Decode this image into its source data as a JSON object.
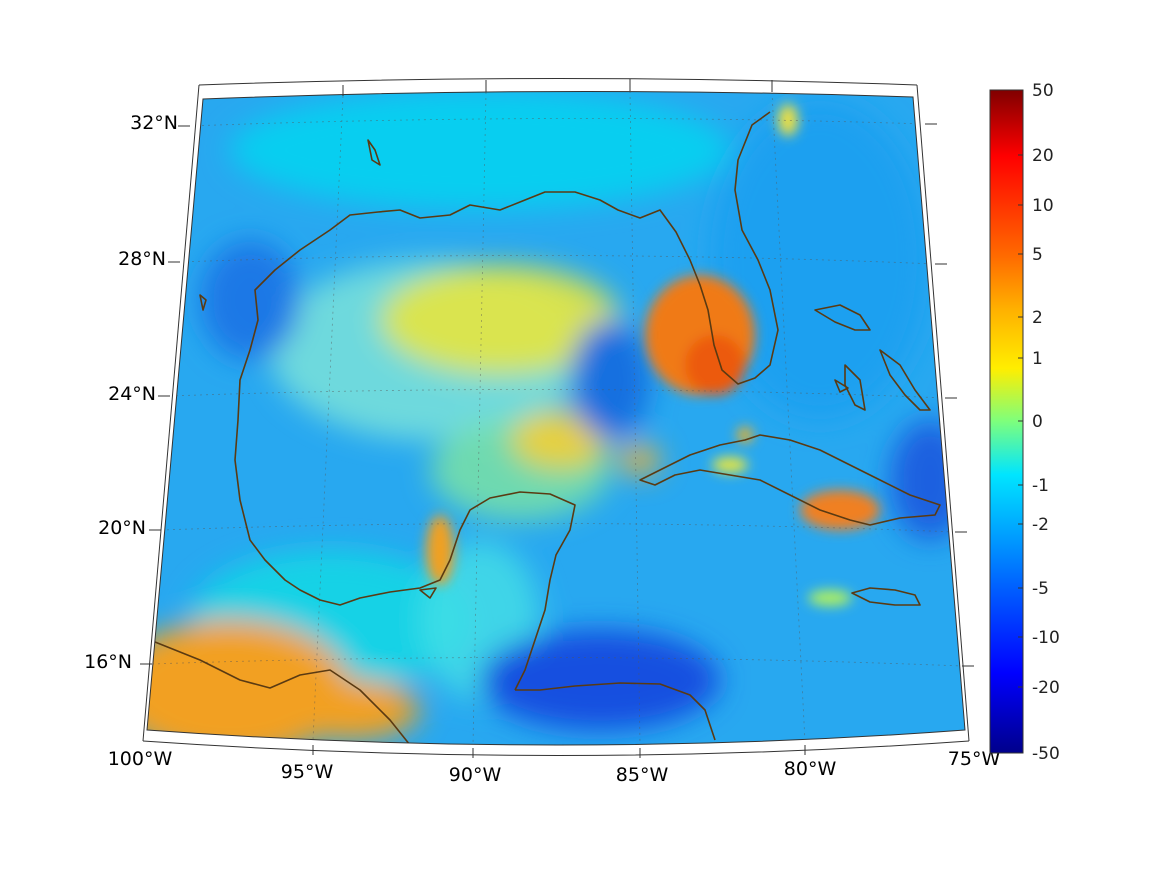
{
  "map": {
    "lat_labels": [
      "32°N",
      "28°N",
      "24°N",
      "20°N",
      "16°N"
    ],
    "lon_labels": [
      "100°W",
      "95°W",
      "90°W",
      "85°W",
      "80°W",
      "75°W"
    ],
    "extent": {
      "lon": [
        -100,
        -75
      ],
      "lat": [
        14.5,
        32.6
      ]
    },
    "coastline_color": "#5a3a12"
  },
  "colorbar": {
    "ticks": [
      "50",
      "20",
      "10",
      "5",
      "2",
      "1",
      "0",
      "-1",
      "-2",
      "-5",
      "-10",
      "-20",
      "-50"
    ],
    "colors": [
      "#800000",
      "#ff0000",
      "#ff6a00",
      "#ffb000",
      "#ffee00",
      "#9cff5c",
      "#38ffc0",
      "#00e0ff",
      "#00a0ff",
      "#0050ff",
      "#0000ff",
      "#00008f"
    ]
  }
}
